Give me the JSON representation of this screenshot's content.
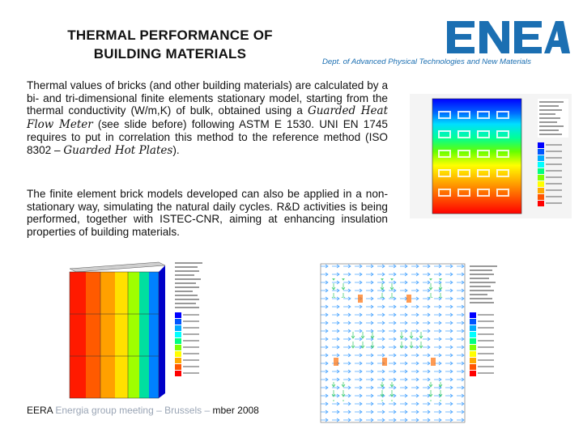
{
  "header": {
    "title_line1": "THERMAL PERFORMANCE OF",
    "title_line2": "BUILDING MATERIALS",
    "logo_text": "ENEA",
    "dept": "Dept. of Advanced Physical Technologies and New Materials"
  },
  "body": {
    "p1_a": "Thermal values of bricks (and other building materials) are calculated by a bi- and tri-dimensional finite elements stationary model, starting from the thermal conductivity (W/m,K) of bulk, obtained using a ",
    "p1_italic1": "Guarded Heat Flow Meter",
    "p1_b": " (see slide before) following ASTM E 1530. UNI EN 1745 requires to put in correlation this method to the reference method (ISO 8302 – ",
    "p1_italic2": "Guarded Hot Plates",
    "p1_c": ").",
    "p2": "The finite element brick models developed can also be applied in a non-stationary way, simulating the natural daily cycles. R&D activities is being performed, together with ISTEC-CNR, aiming at enhancing insulation properties of building materials."
  },
  "footer": {
    "text_start": "EERA",
    "text_hidden": " Energia group meeting – Brussels – ",
    "text_end": "mber 2008"
  },
  "colors": {
    "logo_blue": "#1b6fb2",
    "scale": [
      "#0000ff",
      "#0055ff",
      "#00aaff",
      "#00ffff",
      "#00ff80",
      "#80ff00",
      "#ffff00",
      "#ffaa00",
      "#ff5500",
      "#ff0000"
    ]
  }
}
